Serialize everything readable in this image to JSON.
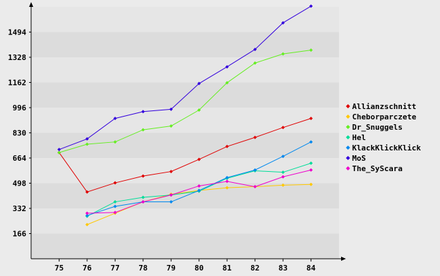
{
  "chart_data": {
    "type": "line",
    "title": "",
    "xlabel": "",
    "ylabel": "",
    "x": [
      75,
      76,
      77,
      78,
      79,
      80,
      81,
      82,
      83,
      84
    ],
    "y_ticks": [
      166,
      332,
      498,
      664,
      830,
      996,
      1162,
      1328,
      1494
    ],
    "ylim": [
      0,
      1660
    ],
    "xlim": [
      74,
      85
    ],
    "grid": "alternating horizontal bands",
    "legend_position": "right",
    "series": [
      {
        "name": "Allianzschnitt",
        "color": "#e00000",
        "x": [
          75,
          76,
          77,
          78,
          79,
          80,
          81,
          82,
          83,
          84
        ],
        "values": [
          700,
          440,
          500,
          545,
          575,
          655,
          740,
          800,
          865,
          925
        ]
      },
      {
        "name": "Cheborparczete",
        "color": "#ffc800",
        "x": [
          76,
          77,
          78,
          79,
          80,
          81,
          82,
          83,
          84
        ],
        "values": [
          225,
          300,
          375,
          425,
          450,
          468,
          475,
          485,
          490
        ]
      },
      {
        "name": "Dr_Snuggels",
        "color": "#66ee22",
        "x": [
          75,
          76,
          77,
          78,
          79,
          80,
          81,
          82,
          83,
          84
        ],
        "values": [
          700,
          755,
          770,
          850,
          875,
          980,
          1160,
          1290,
          1350,
          1375
        ]
      },
      {
        "name": "Hel",
        "color": "#00dd99",
        "x": [
          76,
          77,
          78,
          79,
          80,
          81,
          82,
          83,
          84
        ],
        "values": [
          280,
          375,
          405,
          420,
          445,
          530,
          580,
          570,
          630
        ]
      },
      {
        "name": "KlackKlickKlick",
        "color": "#0088ee",
        "x": [
          76,
          77,
          78,
          79,
          80,
          81,
          82,
          83,
          84
        ],
        "values": [
          285,
          345,
          375,
          375,
          450,
          535,
          585,
          675,
          770
        ]
      },
      {
        "name": "MoS",
        "color": "#3300dd",
        "x": [
          75,
          76,
          77,
          78,
          79,
          80,
          81,
          82,
          83,
          84
        ],
        "values": [
          720,
          790,
          925,
          970,
          985,
          1155,
          1265,
          1380,
          1555,
          1665
        ]
      },
      {
        "name": "The_SyScara",
        "color": "#ee00cc",
        "x": [
          76,
          77,
          78,
          79,
          80,
          81,
          82,
          83,
          84
        ],
        "values": [
          300,
          305,
          375,
          420,
          480,
          510,
          475,
          540,
          585
        ]
      }
    ]
  }
}
